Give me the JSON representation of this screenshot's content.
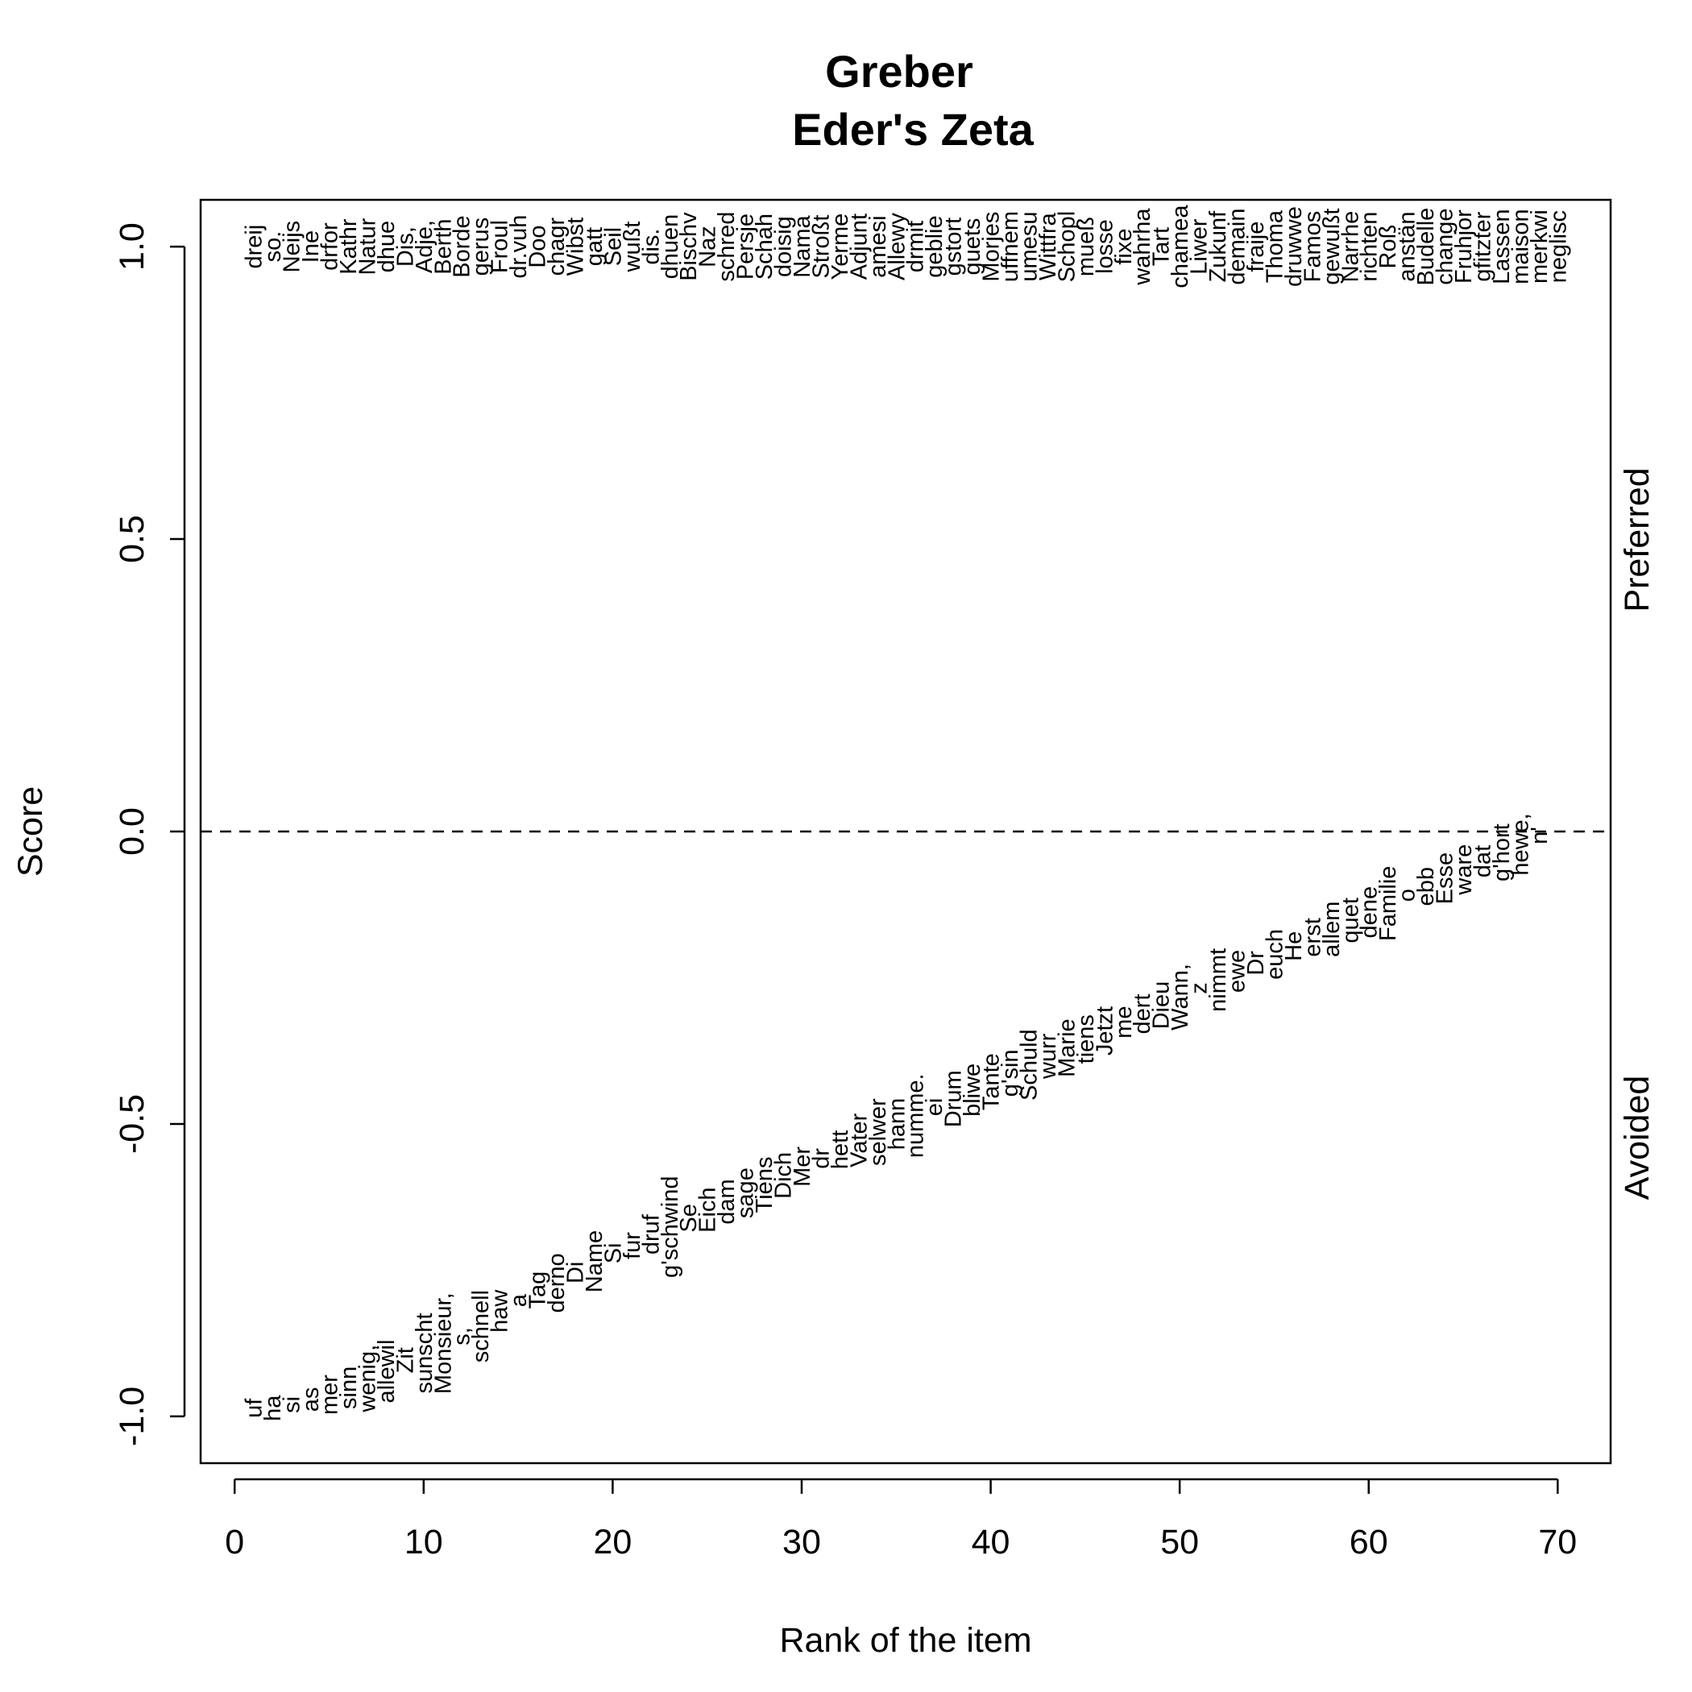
{
  "chart_data": {
    "type": "scatter",
    "title": [
      "Greber",
      "Eder's Zeta"
    ],
    "xlabel": "Rank of the item",
    "ylabel": "Score",
    "xlim": [
      -1.8,
      72.8
    ],
    "ylim": [
      -1.08,
      1.08
    ],
    "xticks": [
      0,
      10,
      20,
      30,
      40,
      50,
      60,
      70
    ],
    "yticks": [
      -1.0,
      -0.5,
      0.0,
      0.5,
      1.0
    ],
    "ytick_labels": [
      "-1.0",
      "-0.5",
      "0.0",
      "0.5",
      "1.0"
    ],
    "reference_line": {
      "y": 0,
      "style": "dashed"
    },
    "side_labels": {
      "top": "Preferred",
      "bottom": "Avoided"
    },
    "grid": false,
    "preferred": {
      "score": 1.0,
      "words": [
        "dreij",
        "so.",
        "Neijs",
        "Ine",
        "drfor",
        "Kathr",
        "Natur",
        "dhue",
        "Dis,",
        "Adje,",
        "Berth",
        "Borde",
        "gerus",
        "Froul",
        "dr.vuh",
        "Doo",
        "chagr",
        "Wibst",
        "gatt",
        "Seil",
        "wußt",
        "dis.",
        "dhuen",
        "Bischv",
        "Naz",
        "schred",
        "Persje",
        "Schah",
        "doisig",
        "Nama",
        "Stroßt",
        "Yerme",
        "Adjunt",
        "amesi",
        "Allewy",
        "drmit",
        "geblie",
        "gstort",
        "guets",
        "Morjes",
        "uffnem",
        "umesu",
        "Wittfra",
        "Schopl",
        "mueß",
        "losse",
        "fixe",
        "wahrha",
        "Tart",
        "chamea",
        "Liwer",
        "Zukunf",
        "demain",
        "fraije",
        "Thoma",
        "druwwe",
        "Famos",
        "gewußt",
        "Narrhe",
        "richten",
        "Roß",
        "anstän",
        "Budelle",
        "change",
        "Fruhjor",
        "gfitzter",
        "Lassen",
        "maison",
        "merkwi",
        "neglisc"
      ]
    },
    "avoided": [
      {
        "rank": 1,
        "word": "uf",
        "score": -0.986
      },
      {
        "rank": 2,
        "word": "ha",
        "score": -0.986
      },
      {
        "rank": 3,
        "word": "si",
        "score": -0.98
      },
      {
        "rank": 4,
        "word": "as",
        "score": -0.971
      },
      {
        "rank": 5,
        "word": "mer",
        "score": -0.963
      },
      {
        "rank": 6,
        "word": "sinn",
        "score": -0.951
      },
      {
        "rank": 7,
        "word": "wenig,",
        "score": -0.935
      },
      {
        "rank": 8,
        "word": "allewil",
        "score": -0.923
      },
      {
        "rank": 9,
        "word": "Zit",
        "score": -0.904
      },
      {
        "rank": 10,
        "word": "sunscht",
        "score": -0.892
      },
      {
        "rank": 11,
        "word": "Monsieur,",
        "score": -0.875
      },
      {
        "rank": 12,
        "word": "s,",
        "score": -0.863
      },
      {
        "rank": 13,
        "word": "schnell",
        "score": -0.846
      },
      {
        "rank": 14,
        "word": "haw",
        "score": -0.82
      },
      {
        "rank": 15,
        "word": "a",
        "score": -0.802
      },
      {
        "rank": 16,
        "word": "Tag",
        "score": -0.784
      },
      {
        "rank": 17,
        "word": "derno",
        "score": -0.772
      },
      {
        "rank": 18,
        "word": "Di",
        "score": -0.754
      },
      {
        "rank": 19,
        "word": "Name",
        "score": -0.735
      },
      {
        "rank": 20,
        "word": "Si",
        "score": -0.721
      },
      {
        "rank": 21,
        "word": "fur",
        "score": -0.708
      },
      {
        "rank": 22,
        "word": "druf",
        "score": -0.689
      },
      {
        "rank": 23,
        "word": "g'schwind",
        "score": -0.676
      },
      {
        "rank": 24,
        "word": "Se",
        "score": -0.661
      },
      {
        "rank": 25,
        "word": "Eich",
        "score": -0.647
      },
      {
        "rank": 26,
        "word": "dam",
        "score": -0.633
      },
      {
        "rank": 27,
        "word": "sage",
        "score": -0.618
      },
      {
        "rank": 28,
        "word": "Tiens",
        "score": -0.604
      },
      {
        "rank": 29,
        "word": "Dich",
        "score": -0.588
      },
      {
        "rank": 30,
        "word": "Mer",
        "score": -0.573
      },
      {
        "rank": 31,
        "word": "dr",
        "score": -0.559
      },
      {
        "rank": 32,
        "word": "hett",
        "score": -0.544
      },
      {
        "rank": 33,
        "word": "Vater",
        "score": -0.528
      },
      {
        "rank": 34,
        "word": "selwer",
        "score": -0.514
      },
      {
        "rank": 35,
        "word": "hann",
        "score": -0.5
      },
      {
        "rank": 36,
        "word": "numme.",
        "score": -0.486
      },
      {
        "rank": 37,
        "word": "ei",
        "score": -0.471
      },
      {
        "rank": 38,
        "word": "Drum",
        "score": -0.457
      },
      {
        "rank": 39,
        "word": "bliwe",
        "score": -0.442
      },
      {
        "rank": 40,
        "word": "Tante",
        "score": -0.428
      },
      {
        "rank": 41,
        "word": "g'sin",
        "score": -0.413
      },
      {
        "rank": 42,
        "word": "Schuld",
        "score": -0.399
      },
      {
        "rank": 43,
        "word": "wurr",
        "score": -0.384
      },
      {
        "rank": 44,
        "word": "Marie",
        "score": -0.37
      },
      {
        "rank": 45,
        "word": "tiens",
        "score": -0.355
      },
      {
        "rank": 46,
        "word": "Jetzt",
        "score": -0.341
      },
      {
        "rank": 47,
        "word": "me",
        "score": -0.326
      },
      {
        "rank": 48,
        "word": "dert",
        "score": -0.312
      },
      {
        "rank": 49,
        "word": "Dieu",
        "score": -0.297
      },
      {
        "rank": 50,
        "word": "Wann,",
        "score": -0.283
      },
      {
        "rank": 51,
        "word": "z",
        "score": -0.268
      },
      {
        "rank": 52,
        "word": "nimmt",
        "score": -0.254
      },
      {
        "rank": 53,
        "word": "ewe",
        "score": -0.239
      },
      {
        "rank": 54,
        "word": "Dr",
        "score": -0.225
      },
      {
        "rank": 55,
        "word": "euch",
        "score": -0.21
      },
      {
        "rank": 56,
        "word": "He",
        "score": -0.196
      },
      {
        "rank": 57,
        "word": "erst",
        "score": -0.181
      },
      {
        "rank": 58,
        "word": "allem",
        "score": -0.167
      },
      {
        "rank": 59,
        "word": "quet",
        "score": -0.152
      },
      {
        "rank": 60,
        "word": "dene",
        "score": -0.138
      },
      {
        "rank": 61,
        "word": "Familie",
        "score": -0.123
      },
      {
        "rank": 62,
        "word": "o",
        "score": -0.109
      },
      {
        "rank": 63,
        "word": "ebb",
        "score": -0.094
      },
      {
        "rank": 64,
        "word": "Esse",
        "score": -0.08
      },
      {
        "rank": 65,
        "word": "ware",
        "score": -0.065
      },
      {
        "rank": 66,
        "word": "dat",
        "score": -0.051
      },
      {
        "rank": 67,
        "word": "g'hort",
        "score": -0.036
      },
      {
        "rank": 68,
        "word": "hewe,",
        "score": -0.022
      },
      {
        "rank": 69,
        "word": "n'",
        "score": -0.007
      }
    ]
  }
}
